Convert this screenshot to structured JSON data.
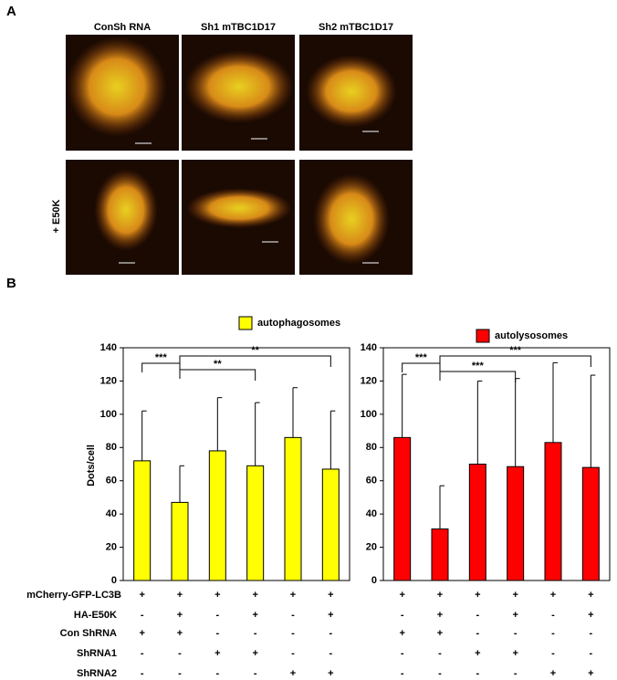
{
  "panel_a": {
    "label": "A",
    "columns": [
      "ConSh RNA",
      "Sh1 mTBC1D17",
      "Sh2 mTBC1D17"
    ],
    "row_label": "+ E50K"
  },
  "panel_b": {
    "label": "B",
    "condition_labels": [
      "mCherry-GFP-LC3B",
      "HA-E50K",
      "Con ShRNA",
      "ShRNA1",
      "ShRNA2"
    ]
  },
  "chart_data": [
    {
      "type": "bar",
      "ylabel": "Dots/cell",
      "ylim": [
        0,
        140
      ],
      "yticks": [
        0,
        20,
        40,
        60,
        80,
        100,
        120,
        140
      ],
      "series": [
        {
          "name": "autophagosomes",
          "color": "#ffff00",
          "values": [
            72,
            47,
            78,
            69,
            86,
            67
          ],
          "errors": [
            30,
            22,
            32,
            38,
            30,
            35
          ]
        }
      ],
      "annotations": [
        "***",
        "**",
        "**"
      ],
      "conditions": [
        [
          "+",
          "+",
          "+",
          "+",
          "+",
          "+"
        ],
        [
          "-",
          "+",
          "-",
          "+",
          "-",
          "+"
        ],
        [
          "+",
          "+",
          "-",
          "-",
          "-",
          "-"
        ],
        [
          "-",
          "-",
          "+",
          "+",
          "-",
          "-"
        ],
        [
          "-",
          "-",
          "-",
          "-",
          "+",
          "+"
        ]
      ]
    },
    {
      "type": "bar",
      "ylim": [
        0,
        140
      ],
      "yticks": [
        0,
        20,
        40,
        60,
        80,
        100,
        120,
        140
      ],
      "series": [
        {
          "name": "autolysosomes",
          "color": "#ff0000",
          "values": [
            86,
            31,
            70,
            68.5,
            83,
            68
          ],
          "errors": [
            38,
            26,
            50,
            53,
            48,
            55.5
          ]
        }
      ],
      "annotations": [
        "***",
        "***",
        "***"
      ],
      "conditions": [
        [
          "+",
          "+",
          "+",
          "+",
          "+",
          "+"
        ],
        [
          "-",
          "+",
          "-",
          "+",
          "-",
          "+"
        ],
        [
          "+",
          "+",
          "-",
          "-",
          "-",
          "-"
        ],
        [
          "-",
          "-",
          "+",
          "+",
          "-",
          "-"
        ],
        [
          "-",
          "-",
          "-",
          "-",
          "+",
          "+"
        ]
      ]
    }
  ]
}
